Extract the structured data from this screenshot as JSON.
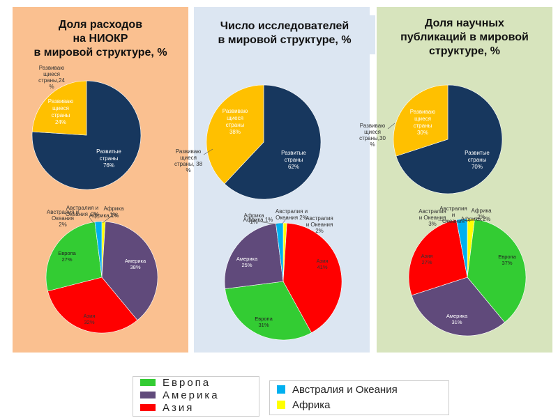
{
  "colors": {
    "developed": "#17375e",
    "developing": "#ffc000",
    "europe": "#33cc33",
    "america": "#604a7b",
    "asia": "#ff0000",
    "australia": "#00b0f0",
    "africa": "#ffff00"
  },
  "panels": [
    {
      "title": [
        "Доля расходов",
        "на НИОКР",
        "в мировой структуре, %"
      ],
      "background": "#fac090"
    },
    {
      "title": [
        "Число исследователей",
        "в мировой структуре, %"
      ],
      "background": "#dce6f2"
    },
    {
      "title": [
        "Доля научных",
        "публикаций в мировой",
        "структуре, %"
      ],
      "background": "#d7e4bd"
    }
  ],
  "chart_data": [
    {
      "type": "pie",
      "title": "Доля расходов на НИОКР в мировой структуре, %",
      "labels": [
        "Развитые страны",
        "Развивающиеся страны"
      ],
      "values": [
        76,
        24
      ],
      "inner_labels": [
        [
          "Развитые",
          "страны",
          "76%"
        ],
        [
          "Развиваю",
          "щиеся",
          "страны",
          "24%"
        ]
      ],
      "callout": [
        "Развиваю",
        "щиеся",
        "страны,24",
        "%"
      ]
    },
    {
      "type": "pie",
      "labels": [
        "Европа",
        "Америка",
        "Азия",
        "Австралия и Океания",
        "Африка"
      ],
      "values": [
        27,
        38,
        32,
        2,
        1
      ],
      "inner_labels": [
        [
          "Европа",
          "27%"
        ],
        [
          "Америка",
          "38%"
        ],
        [
          "Азия",
          "32%"
        ]
      ],
      "callouts": [
        [
          "Австралия и",
          "Океания ,2%"
        ],
        [
          "Африка",
          "1%"
        ],
        [
          "Австралия и",
          "Океания",
          "2%"
        ],
        [
          "Африка,1%"
        ]
      ]
    },
    {
      "type": "pie",
      "title": "Число исследователей в мировой структуре, %",
      "labels": [
        "Развитые страны",
        "Развивающиеся страны"
      ],
      "values": [
        62,
        38
      ],
      "inner_labels": [
        [
          "Развитые",
          "страны",
          "62%"
        ],
        [
          "Развиваю",
          "щиеся",
          "страны",
          "38%"
        ]
      ],
      "callout": [
        "Развиваю",
        "щиеся",
        "страны, 38",
        "%"
      ]
    },
    {
      "type": "pie",
      "labels": [
        "Европа",
        "Америка",
        "Азия",
        "Австралия и Океания",
        "Африка"
      ],
      "values": [
        31,
        25,
        41,
        2,
        1
      ],
      "inner_labels": [
        [
          "Европа",
          "31%"
        ],
        [
          "Америка",
          "25%"
        ],
        [
          "Азия",
          "41%"
        ]
      ],
      "callouts": [
        [
          "Африка",
          "1%"
        ],
        [
          "Австралия и",
          "Океания 2%"
        ],
        [
          "Африка,1%"
        ],
        [
          "Австралия",
          "и Океания",
          "2%"
        ]
      ]
    },
    {
      "type": "pie",
      "title": "Доля научных публикаций в мировой структуре, %",
      "labels": [
        "Развитые страны",
        "Развивающиеся страны"
      ],
      "values": [
        70,
        30
      ],
      "inner_labels": [
        [
          "Развитые",
          "страны",
          "70%"
        ],
        [
          "Развиваю",
          "щиеся",
          "страны",
          "30%"
        ]
      ],
      "callout": [
        "Развиваю",
        "щиеся",
        "страны,30",
        "%"
      ]
    },
    {
      "type": "pie",
      "labels": [
        "Европа",
        "Америка",
        "Азия",
        "Австралия и Океания",
        "Африка"
      ],
      "values": [
        37,
        31,
        27,
        3,
        2
      ],
      "inner_labels": [
        [
          "Европа",
          "37%"
        ],
        [
          "Америка",
          "31%"
        ],
        [
          "Азия",
          "27%"
        ]
      ],
      "callouts": [
        [
          "Австралия",
          "и Океания",
          "3%"
        ],
        [
          "Африка",
          "2%"
        ],
        [
          "Австралия",
          "и",
          "Океания"
        ],
        [
          "Африка,2%"
        ]
      ]
    }
  ],
  "legend": {
    "left": [
      {
        "label": "Европа",
        "color": "#33cc33"
      },
      {
        "label": "Америка",
        "color": "#604a7b"
      },
      {
        "label": "Азия",
        "color": "#ff0000"
      }
    ],
    "right": [
      {
        "label": "Австралия и Океания",
        "color": "#00b0f0"
      },
      {
        "label": "Африка",
        "color": "#ffff00"
      }
    ]
  }
}
